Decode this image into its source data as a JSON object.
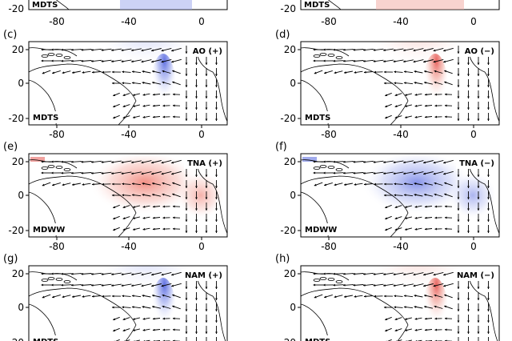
{
  "figure": {
    "top_partial": {
      "left_tag": "MDTS",
      "right_tag": "MDTS",
      "ytick": "-20",
      "xticks": [
        "-80",
        "-40",
        "0"
      ]
    },
    "panels": [
      {
        "label": "(c)",
        "mode": "AO (+)",
        "tag": "MDTS",
        "anomaly": "blue",
        "pattern": "north-core"
      },
      {
        "label": "(d)",
        "mode": "AO (−)",
        "tag": "MDTS",
        "anomaly": "red",
        "pattern": "north-core"
      },
      {
        "label": "(e)",
        "mode": "TNA (+)",
        "tag": "MDWW",
        "anomaly": "red",
        "pattern": "equatorial"
      },
      {
        "label": "(f)",
        "mode": "TNA (−)",
        "tag": "MDWW",
        "anomaly": "blue",
        "pattern": "equatorial"
      },
      {
        "label": "(g)",
        "mode": "NAM (+)",
        "tag": "MDTS",
        "anomaly": "blue",
        "pattern": "north-core"
      },
      {
        "label": "(h)",
        "mode": "NAM (−)",
        "tag": "MDTS",
        "anomaly": "red",
        "pattern": "north-core"
      }
    ],
    "yticks": [
      "20",
      "0",
      "-20"
    ],
    "xticks": [
      "-80",
      "-40",
      "0"
    ],
    "bottom_partial_ytick": "-20",
    "colors": {
      "positive": "#e0302b",
      "negative": "#2f44d8",
      "arrows": "#000000",
      "coast": "#000000"
    }
  }
}
